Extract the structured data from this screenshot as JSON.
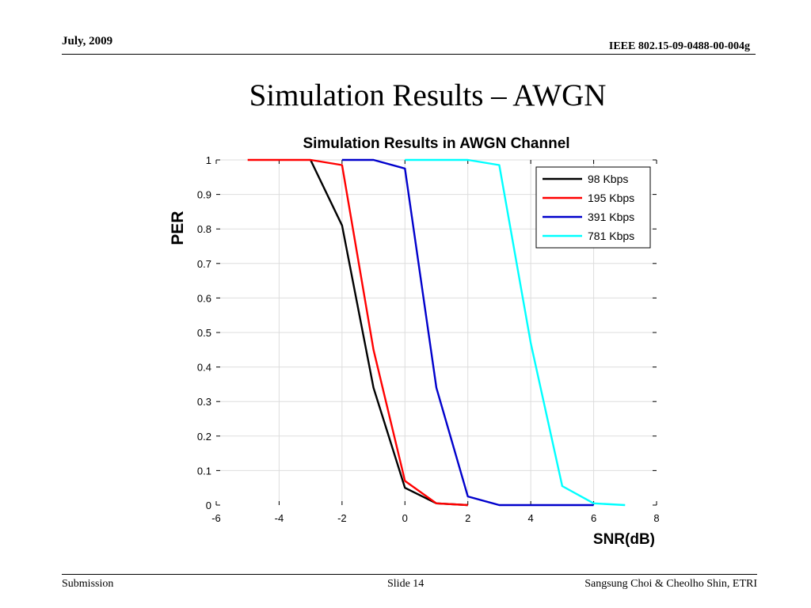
{
  "header": {
    "date": "July,  2009",
    "doc_id": "IEEE 802.15-09-0488-00-004g"
  },
  "slide": {
    "title": "Simulation Results – AWGN"
  },
  "footer": {
    "left": "Submission",
    "center": "Slide 14",
    "right": "Sangsung Choi & Cheolho Shin, ETRI"
  },
  "chart_data": {
    "type": "line",
    "title": "Simulation Results in AWGN Channel",
    "xlabel": "SNR(dB)",
    "ylabel": "PER",
    "xlim": [
      -6,
      8
    ],
    "ylim": [
      0,
      1
    ],
    "xticks": [
      -6,
      -4,
      -2,
      0,
      2,
      4,
      6,
      8
    ],
    "yticks": [
      0,
      0.1,
      0.2,
      0.3,
      0.4,
      0.5,
      0.6,
      0.7,
      0.8,
      0.9,
      1
    ],
    "grid": true,
    "legend_position": "top-right",
    "series": [
      {
        "name": "98 Kbps",
        "color": "#000000",
        "x": [
          -3,
          -2,
          -1,
          0,
          1,
          2
        ],
        "y": [
          1,
          0.81,
          0.34,
          0.05,
          0.005,
          0
        ]
      },
      {
        "name": "195 Kbps",
        "color": "#ff0000",
        "x": [
          -5,
          -4,
          -3,
          -2,
          -1,
          0,
          1,
          2
        ],
        "y": [
          1,
          1,
          1,
          0.985,
          0.45,
          0.07,
          0.005,
          0
        ]
      },
      {
        "name": "391 Kbps",
        "color": "#0000cc",
        "x": [
          -2,
          -1,
          0,
          1,
          2,
          3,
          4,
          5,
          6
        ],
        "y": [
          1,
          1,
          0.975,
          0.34,
          0.025,
          0,
          0,
          0,
          0
        ]
      },
      {
        "name": "781 Kbps",
        "color": "#00ffff",
        "x": [
          0,
          1,
          2,
          3,
          4,
          5,
          6,
          7
        ],
        "y": [
          1,
          1,
          1,
          0.985,
          0.47,
          0.055,
          0.005,
          0
        ]
      }
    ]
  }
}
